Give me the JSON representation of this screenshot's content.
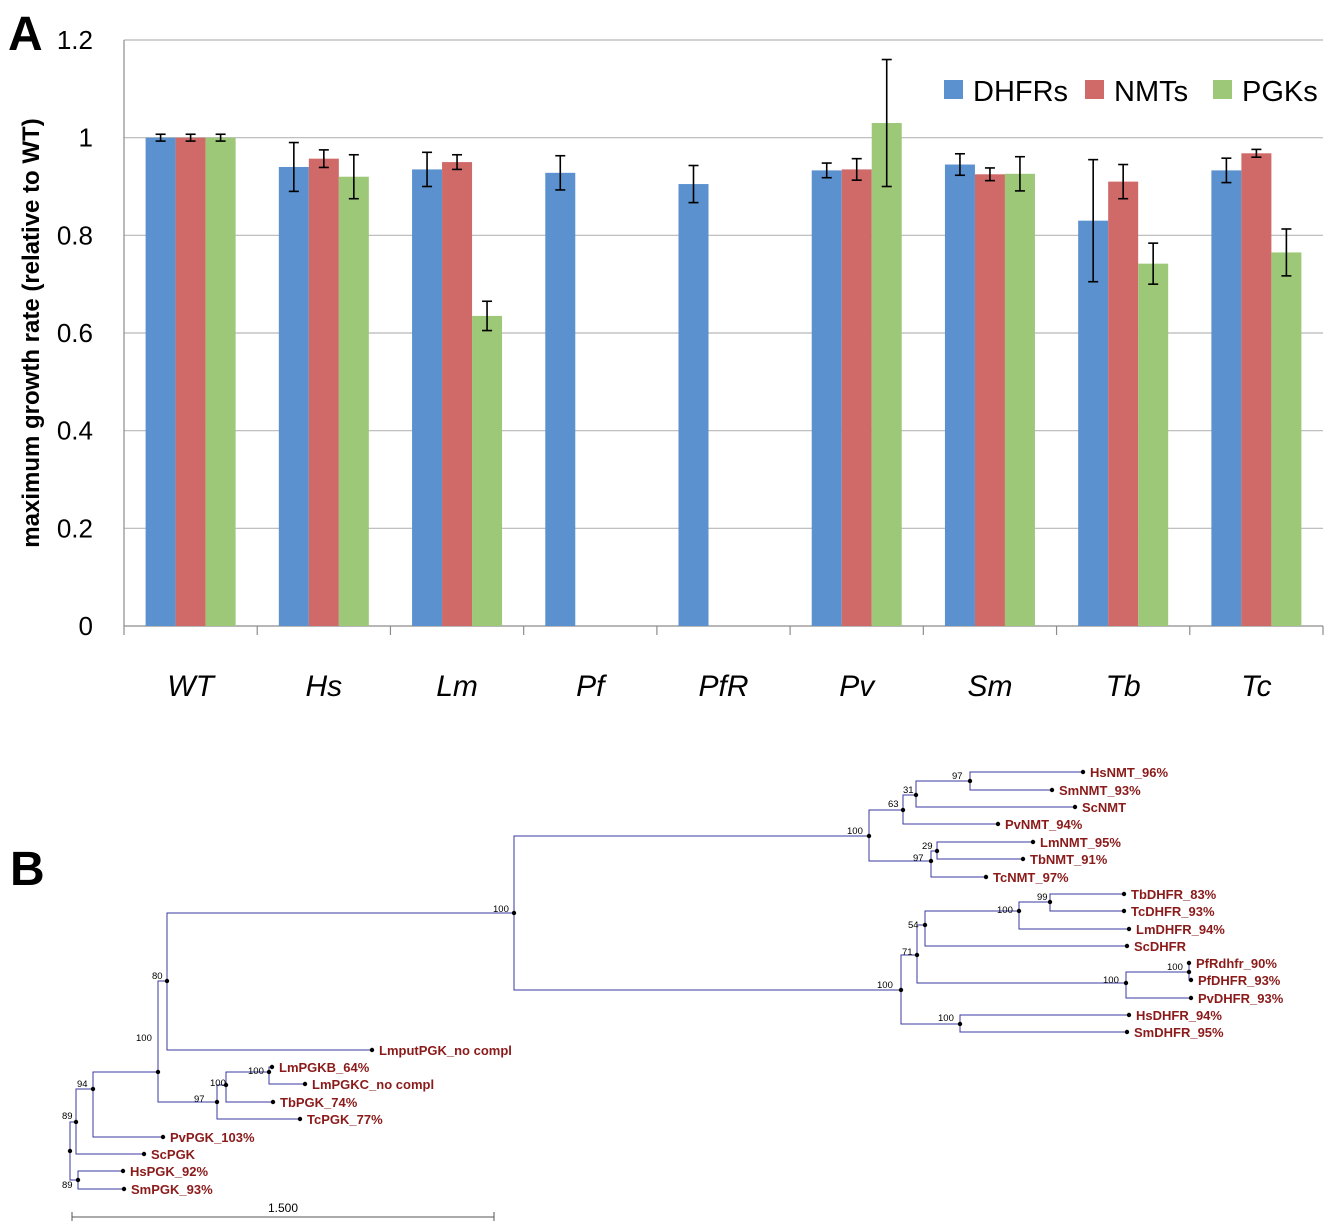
{
  "panel_a_letter": "A",
  "panel_b_letter": "B",
  "chart_data": {
    "type": "bar",
    "title": "",
    "xlabel": "",
    "ylabel": "maximum growth rate (relative to WT)",
    "ylim": [
      0,
      1.2
    ],
    "yticks": [
      0,
      0.2,
      0.4,
      0.6,
      0.8,
      1,
      1.2
    ],
    "ytick_labels": [
      "0",
      "0.2",
      "0.4",
      "0.6",
      "0.8",
      "1",
      "1.2"
    ],
    "grid": true,
    "legend_position": "top-right",
    "categories": [
      "WT",
      "Hs",
      "Lm",
      "Pf",
      "PfR",
      "Pv",
      "Sm",
      "Tb",
      "Tc"
    ],
    "series": [
      {
        "name": "DHFRs",
        "color": "#5b91ce",
        "values": [
          1.0,
          0.94,
          0.935,
          0.928,
          0.905,
          0.933,
          0.945,
          0.83,
          0.933
        ],
        "errors": [
          0.007,
          0.05,
          0.035,
          0.035,
          0.038,
          0.015,
          0.022,
          0.125,
          0.025
        ]
      },
      {
        "name": "NMTs",
        "color": "#cf6a69",
        "values": [
          1.0,
          0.957,
          0.95,
          null,
          null,
          0.935,
          0.925,
          0.91,
          0.968
        ],
        "errors": [
          0.007,
          0.018,
          0.015,
          null,
          null,
          0.022,
          0.013,
          0.035,
          0.008
        ]
      },
      {
        "name": "PGKs",
        "color": "#9dc878",
        "values": [
          1.0,
          0.92,
          0.635,
          null,
          null,
          1.03,
          0.926,
          0.742,
          0.765
        ],
        "errors": [
          0.007,
          0.045,
          0.03,
          null,
          null,
          0.13,
          0.035,
          0.042,
          0.048
        ]
      }
    ]
  },
  "tree": {
    "scale_label": "1.500",
    "leaves": [
      "HsNMT_96%",
      "SmNMT_93%",
      "ScNMT",
      "PvNMT_94%",
      "LmNMT_95%",
      "TbNMT_91%",
      "TcNMT_97%",
      "TbDHFR_83%",
      "TcDHFR_93%",
      "LmDHFR_94%",
      "ScDHFR",
      "PfRdhfr_90%",
      "PfDHFR_93%",
      "PvDHFR_93%",
      "HsDHFR_94%",
      "SmDHFR_95%",
      "LmputPGK_no compl",
      "LmPGKB_64%",
      "LmPGKC_no compl",
      "TbPGK_74%",
      "TcPGK_77%",
      "PvPGK_103%",
      "ScPGK",
      "HsPGK_92%",
      "SmPGK_93%"
    ],
    "supports": [
      "97",
      "31",
      "63",
      "100",
      "29",
      "97",
      "99",
      "100",
      "54",
      "71",
      "100",
      "100",
      "100",
      "100",
      "100",
      "80",
      "100",
      "100",
      "97",
      "100",
      "94",
      "89",
      "89"
    ]
  }
}
